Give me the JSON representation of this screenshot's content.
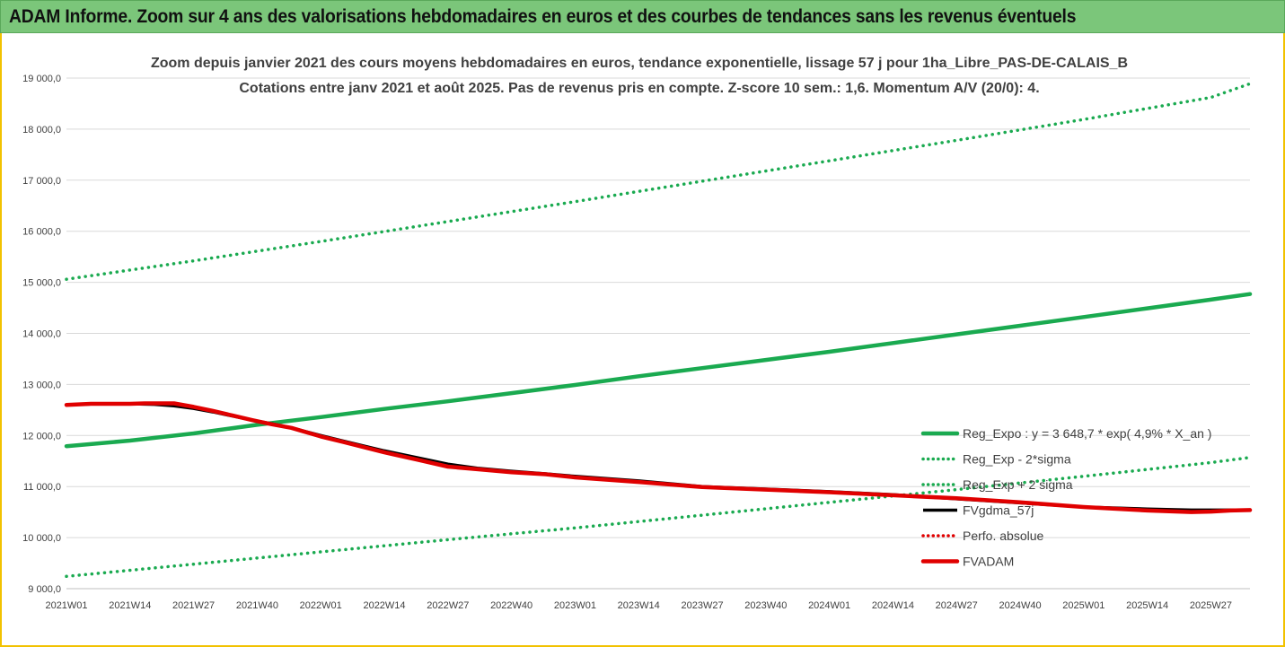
{
  "banner": {
    "title": "ADAM Informe. Zoom sur 4 ans des valorisations hebdomadaires en euros et des courbes de tendances sans les revenus éventuels"
  },
  "colors": {
    "banner_bg": "#7bc67a",
    "reg_expo": "#1aaa50",
    "reg_sigma": "#1aaa50",
    "fvgdma": "#000000",
    "perfo": "#e00000",
    "fvadam": "#e00000",
    "grid": "#d9d9d9"
  },
  "chart_data": {
    "type": "line",
    "title_line1": "Zoom depuis janvier 2021 des cours moyens hebdomadaires en euros, tendance exponentielle, lissage 57 j pour 1ha_Libre_PAS-DE-CALAIS_B",
    "title_line2": "Cotations entre janv 2021 et août 2025.  Pas de revenus pris en compte. Z-score 10 sem.: 1,6. Momentum A/V (20/0): 4.",
    "x_ticks": [
      "2021W01",
      "2021W14",
      "2021W27",
      "2021W40",
      "2022W01",
      "2022W14",
      "2022W27",
      "2022W40",
      "2023W01",
      "2023W14",
      "2023W27",
      "2023W40",
      "2024W01",
      "2024W14",
      "2024W27",
      "2024W40",
      "2025W01",
      "2025W14",
      "2025W27"
    ],
    "x_range_weeks": [
      0,
      242
    ],
    "y_ticks": [
      "9 000,0",
      "10 000,0",
      "11 000,0",
      "12 000,0",
      "13 000,0",
      "14 000,0",
      "15 000,0",
      "16 000,0",
      "17 000,0",
      "18 000,0",
      "19 000,0"
    ],
    "ylim": [
      9000,
      19000
    ],
    "grid": true,
    "legend_position": "right",
    "series": [
      {
        "name": "Reg_Expo : y = 3 648,7 * exp( 4,9% *  X_an )",
        "key": "reg_expo",
        "style": "solid-thick",
        "points": [
          [
            0,
            11790
          ],
          [
            13,
            11900
          ],
          [
            26,
            12040
          ],
          [
            39,
            12210
          ],
          [
            52,
            12360
          ],
          [
            65,
            12520
          ],
          [
            78,
            12670
          ],
          [
            91,
            12830
          ],
          [
            104,
            12990
          ],
          [
            117,
            13160
          ],
          [
            130,
            13320
          ],
          [
            143,
            13480
          ],
          [
            156,
            13640
          ],
          [
            169,
            13810
          ],
          [
            182,
            13980
          ],
          [
            195,
            14150
          ],
          [
            208,
            14320
          ],
          [
            221,
            14490
          ],
          [
            234,
            14660
          ],
          [
            242,
            14770
          ]
        ]
      },
      {
        "name": "Reg_Exp - 2*sigma",
        "key": "reg_sigma",
        "style": "dotted",
        "points": [
          [
            0,
            9240
          ],
          [
            26,
            9480
          ],
          [
            52,
            9720
          ],
          [
            78,
            9960
          ],
          [
            104,
            10190
          ],
          [
            130,
            10440
          ],
          [
            156,
            10690
          ],
          [
            182,
            10940
          ],
          [
            208,
            11200
          ],
          [
            234,
            11470
          ],
          [
            242,
            11570
          ]
        ]
      },
      {
        "name": "Reg_Exp + 2 sigma",
        "key": "reg_sigma",
        "style": "dotted",
        "points": [
          [
            0,
            15060
          ],
          [
            26,
            15420
          ],
          [
            52,
            15800
          ],
          [
            78,
            16190
          ],
          [
            104,
            16580
          ],
          [
            130,
            16980
          ],
          [
            156,
            17380
          ],
          [
            182,
            17780
          ],
          [
            208,
            18190
          ],
          [
            234,
            18620
          ],
          [
            242,
            18890
          ]
        ]
      },
      {
        "name": "FVgdma_57j",
        "key": "fvgdma",
        "style": "solid",
        "points": [
          [
            0,
            12600
          ],
          [
            6,
            12620
          ],
          [
            13,
            12620
          ],
          [
            18,
            12610
          ],
          [
            22,
            12580
          ],
          [
            26,
            12530
          ],
          [
            30,
            12460
          ],
          [
            34,
            12380
          ],
          [
            38,
            12300
          ],
          [
            42,
            12230
          ],
          [
            46,
            12150
          ],
          [
            52,
            12000
          ],
          [
            58,
            11860
          ],
          [
            65,
            11700
          ],
          [
            72,
            11560
          ],
          [
            78,
            11440
          ],
          [
            84,
            11360
          ],
          [
            91,
            11300
          ],
          [
            98,
            11250
          ],
          [
            104,
            11200
          ],
          [
            117,
            11110
          ],
          [
            130,
            11000
          ],
          [
            143,
            10950
          ],
          [
            156,
            10900
          ],
          [
            169,
            10840
          ],
          [
            182,
            10760
          ],
          [
            195,
            10680
          ],
          [
            208,
            10600
          ],
          [
            221,
            10560
          ],
          [
            230,
            10540
          ],
          [
            234,
            10540
          ],
          [
            242,
            10540
          ]
        ]
      },
      {
        "name": "Perfo. absolue",
        "key": "perfo",
        "style": "dotted",
        "points": []
      },
      {
        "name": "FVADAM",
        "key": "fvadam",
        "style": "solid-thick",
        "points": [
          [
            0,
            12600
          ],
          [
            5,
            12620
          ],
          [
            13,
            12620
          ],
          [
            16,
            12630
          ],
          [
            22,
            12630
          ],
          [
            26,
            12560
          ],
          [
            30,
            12480
          ],
          [
            34,
            12390
          ],
          [
            38,
            12300
          ],
          [
            42,
            12220
          ],
          [
            46,
            12150
          ],
          [
            52,
            11980
          ],
          [
            58,
            11840
          ],
          [
            65,
            11670
          ],
          [
            72,
            11520
          ],
          [
            78,
            11390
          ],
          [
            84,
            11340
          ],
          [
            91,
            11280
          ],
          [
            98,
            11240
          ],
          [
            104,
            11180
          ],
          [
            117,
            11090
          ],
          [
            130,
            10990
          ],
          [
            143,
            10940
          ],
          [
            156,
            10890
          ],
          [
            169,
            10830
          ],
          [
            182,
            10770
          ],
          [
            195,
            10690
          ],
          [
            208,
            10600
          ],
          [
            221,
            10530
          ],
          [
            230,
            10500
          ],
          [
            234,
            10510
          ],
          [
            238,
            10530
          ],
          [
            242,
            10540
          ]
        ]
      }
    ]
  }
}
